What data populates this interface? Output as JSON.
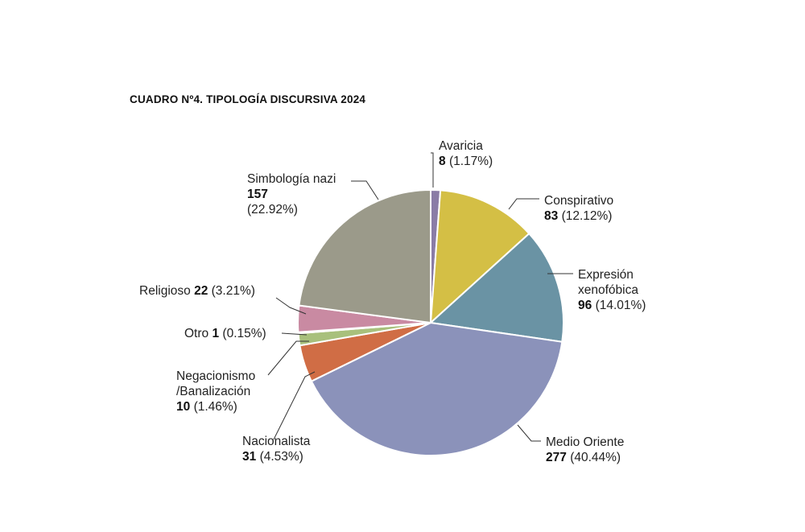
{
  "chart_data": {
    "type": "pie",
    "title": "CUADRO Nº4. TIPOLOGÍA DISCURSIVA 2024",
    "categories": [
      "Avaricia",
      "Conspirativo",
      "Expresión xenofóbica",
      "Medio Oriente",
      "Nacionalista",
      "Negacionismo /Banalización",
      "Otro",
      "Religioso",
      "Simbología nazi"
    ],
    "values": [
      8,
      83,
      96,
      277,
      31,
      10,
      1,
      22,
      157
    ],
    "percents": [
      "(1.17%)",
      "(12.12%)",
      "(14.01%)",
      "(40.44%)",
      "(4.53%)",
      "(1.46%)",
      "(0.15%)",
      "(3.21%)",
      "(22.92%)"
    ],
    "colors": [
      "#8a7ca6",
      "#d4bf45",
      "#6a93a4",
      "#8b92ba",
      "#d06d45",
      "#a8c07c",
      "#e9cca6",
      "#c98aa2",
      "#9b9a8a"
    ]
  },
  "labels": {
    "avaricia": {
      "name": "Avaricia",
      "value": "8",
      "pct": "(1.17%)"
    },
    "conspirativo": {
      "name": "Conspirativo",
      "value": "83",
      "pct": "(12.12%)"
    },
    "expresion": {
      "name1": "Expresión",
      "name2": "xenofóbica",
      "value": "96",
      "pct": "(14.01%)"
    },
    "medio": {
      "name": "Medio Oriente",
      "value": "277",
      "pct": "(40.44%)"
    },
    "nacionalista": {
      "name": "Nacionalista",
      "value": "31",
      "pct": "(4.53%)"
    },
    "negacionismo": {
      "name1": "Negacionismo",
      "name2": "/Banalización",
      "value": "10",
      "pct": "(1.46%)"
    },
    "otro": {
      "name": "Otro",
      "value": "1",
      "pct": "(0.15%)"
    },
    "religioso": {
      "name": "Religioso",
      "value": "22",
      "pct": "(3.21%)"
    },
    "simbologia": {
      "name": "Simbología nazi",
      "value": "157",
      "pct": "(22.92%)"
    }
  }
}
